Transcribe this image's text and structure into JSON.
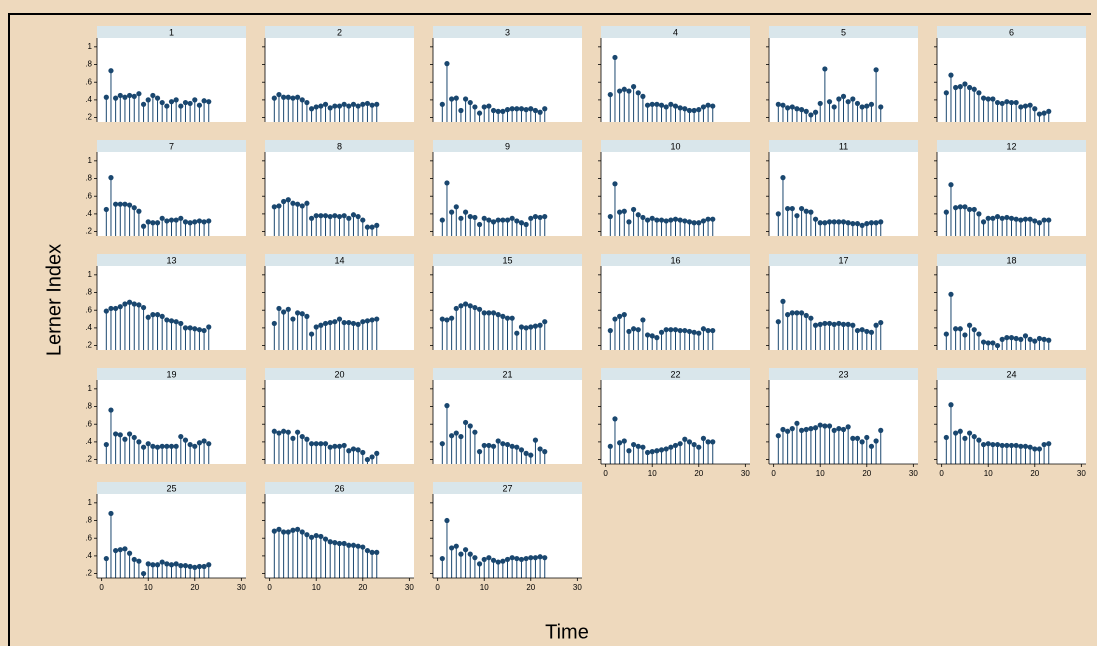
{
  "chart_data": {
    "type": "stem",
    "x_title": "Time",
    "y_title": "Lerner Index",
    "color": "#1a476f",
    "x": [
      1,
      2,
      3,
      4,
      5,
      6,
      7,
      8,
      9,
      10,
      11,
      12,
      13,
      14,
      15,
      16,
      17,
      18,
      19,
      20,
      21,
      22,
      23
    ],
    "xlim": [
      -1,
      31
    ],
    "xticks": [
      0,
      10,
      20,
      30
    ],
    "ylim": [
      0.15,
      1.1
    ],
    "yticks": [
      {
        "value": 0.2,
        "label": ".2"
      },
      {
        "value": 0.4,
        "label": ".4"
      },
      {
        "value": 0.6,
        "label": ".6"
      },
      {
        "value": 0.8,
        "label": ".8"
      },
      1
    ],
    "panels": [
      {
        "title": "1",
        "values": [
          0.43,
          0.73,
          0.42,
          0.45,
          0.43,
          0.45,
          0.44,
          0.47,
          0.35,
          0.4,
          0.45,
          0.42,
          0.37,
          0.33,
          0.38,
          0.4,
          0.33,
          0.37,
          0.36,
          0.4,
          0.34,
          0.39,
          0.38
        ]
      },
      {
        "title": "2",
        "values": [
          0.42,
          0.46,
          0.43,
          0.43,
          0.42,
          0.43,
          0.4,
          0.37,
          0.3,
          0.32,
          0.33,
          0.35,
          0.31,
          0.33,
          0.33,
          0.35,
          0.33,
          0.35,
          0.33,
          0.35,
          0.36,
          0.34,
          0.35
        ]
      },
      {
        "title": "3",
        "values": [
          0.35,
          0.81,
          0.41,
          0.42,
          0.28,
          0.41,
          0.37,
          0.32,
          0.25,
          0.32,
          0.33,
          0.28,
          0.27,
          0.27,
          0.29,
          0.3,
          0.3,
          0.3,
          0.29,
          0.3,
          0.28,
          0.26,
          0.3
        ]
      },
      {
        "title": "4",
        "values": [
          0.46,
          0.88,
          0.5,
          0.52,
          0.5,
          0.55,
          0.48,
          0.44,
          0.34,
          0.35,
          0.35,
          0.34,
          0.32,
          0.35,
          0.33,
          0.31,
          0.3,
          0.28,
          0.28,
          0.29,
          0.32,
          0.34,
          0.33
        ]
      },
      {
        "title": "5",
        "values": [
          0.35,
          0.34,
          0.31,
          0.32,
          0.3,
          0.29,
          0.27,
          0.23,
          0.26,
          0.36,
          0.75,
          0.38,
          0.32,
          0.41,
          0.44,
          0.38,
          0.41,
          0.36,
          0.32,
          0.33,
          0.35,
          0.74,
          0.32
        ]
      },
      {
        "title": "6",
        "values": [
          0.48,
          0.68,
          0.54,
          0.55,
          0.58,
          0.54,
          0.52,
          0.48,
          0.42,
          0.41,
          0.41,
          0.37,
          0.36,
          0.38,
          0.37,
          0.37,
          0.32,
          0.33,
          0.34,
          0.3,
          0.24,
          0.25,
          0.27
        ]
      },
      {
        "title": "7",
        "values": [
          0.45,
          0.81,
          0.51,
          0.51,
          0.51,
          0.5,
          0.47,
          0.43,
          0.26,
          0.31,
          0.3,
          0.3,
          0.35,
          0.32,
          0.33,
          0.33,
          0.35,
          0.31,
          0.3,
          0.31,
          0.32,
          0.31,
          0.32
        ]
      },
      {
        "title": "8",
        "values": [
          0.48,
          0.49,
          0.54,
          0.56,
          0.52,
          0.51,
          0.49,
          0.52,
          0.35,
          0.38,
          0.38,
          0.38,
          0.37,
          0.38,
          0.37,
          0.38,
          0.35,
          0.39,
          0.37,
          0.33,
          0.25,
          0.25,
          0.27
        ]
      },
      {
        "title": "9",
        "values": [
          0.33,
          0.75,
          0.42,
          0.48,
          0.35,
          0.42,
          0.37,
          0.36,
          0.28,
          0.35,
          0.33,
          0.31,
          0.33,
          0.33,
          0.33,
          0.35,
          0.32,
          0.3,
          0.28,
          0.35,
          0.37,
          0.36,
          0.37
        ]
      },
      {
        "title": "10",
        "values": [
          0.37,
          0.74,
          0.42,
          0.43,
          0.31,
          0.45,
          0.39,
          0.36,
          0.33,
          0.35,
          0.33,
          0.33,
          0.32,
          0.33,
          0.34,
          0.33,
          0.32,
          0.31,
          0.3,
          0.3,
          0.32,
          0.34,
          0.34
        ]
      },
      {
        "title": "11",
        "values": [
          0.4,
          0.81,
          0.46,
          0.46,
          0.38,
          0.46,
          0.43,
          0.42,
          0.34,
          0.3,
          0.3,
          0.31,
          0.31,
          0.31,
          0.31,
          0.3,
          0.29,
          0.29,
          0.27,
          0.29,
          0.3,
          0.3,
          0.31
        ]
      },
      {
        "title": "12",
        "values": [
          0.42,
          0.73,
          0.47,
          0.48,
          0.48,
          0.45,
          0.45,
          0.4,
          0.31,
          0.35,
          0.35,
          0.37,
          0.35,
          0.36,
          0.35,
          0.34,
          0.33,
          0.34,
          0.34,
          0.32,
          0.3,
          0.33,
          0.33
        ]
      },
      {
        "title": "13",
        "values": [
          0.59,
          0.62,
          0.62,
          0.64,
          0.67,
          0.69,
          0.67,
          0.66,
          0.63,
          0.52,
          0.55,
          0.55,
          0.53,
          0.49,
          0.48,
          0.47,
          0.45,
          0.4,
          0.4,
          0.39,
          0.38,
          0.37,
          0.41
        ]
      },
      {
        "title": "14",
        "values": [
          0.45,
          0.62,
          0.58,
          0.61,
          0.5,
          0.57,
          0.56,
          0.53,
          0.33,
          0.41,
          0.43,
          0.45,
          0.46,
          0.47,
          0.5,
          0.46,
          0.46,
          0.45,
          0.44,
          0.47,
          0.48,
          0.49,
          0.5
        ]
      },
      {
        "title": "15",
        "values": [
          0.5,
          0.49,
          0.51,
          0.62,
          0.65,
          0.67,
          0.65,
          0.63,
          0.61,
          0.57,
          0.57,
          0.57,
          0.55,
          0.53,
          0.51,
          0.51,
          0.34,
          0.41,
          0.4,
          0.41,
          0.42,
          0.43,
          0.47
        ]
      },
      {
        "title": "16",
        "values": [
          0.37,
          0.5,
          0.53,
          0.55,
          0.36,
          0.39,
          0.38,
          0.49,
          0.32,
          0.31,
          0.29,
          0.35,
          0.38,
          0.38,
          0.38,
          0.37,
          0.37,
          0.36,
          0.35,
          0.34,
          0.39,
          0.37,
          0.37
        ]
      },
      {
        "title": "17",
        "values": [
          0.47,
          0.7,
          0.55,
          0.57,
          0.57,
          0.57,
          0.54,
          0.51,
          0.43,
          0.44,
          0.45,
          0.45,
          0.44,
          0.45,
          0.44,
          0.44,
          0.43,
          0.37,
          0.38,
          0.36,
          0.35,
          0.43,
          0.46
        ]
      },
      {
        "title": "18",
        "values": [
          0.33,
          0.78,
          0.39,
          0.39,
          0.32,
          0.43,
          0.38,
          0.33,
          0.24,
          0.23,
          0.23,
          0.2,
          0.27,
          0.29,
          0.29,
          0.28,
          0.27,
          0.31,
          0.27,
          0.25,
          0.28,
          0.27,
          0.26
        ]
      },
      {
        "title": "19",
        "values": [
          0.37,
          0.76,
          0.49,
          0.48,
          0.43,
          0.49,
          0.45,
          0.4,
          0.34,
          0.38,
          0.35,
          0.34,
          0.35,
          0.35,
          0.35,
          0.35,
          0.46,
          0.42,
          0.37,
          0.35,
          0.39,
          0.41,
          0.38
        ]
      },
      {
        "title": "20",
        "values": [
          0.52,
          0.5,
          0.52,
          0.51,
          0.44,
          0.51,
          0.46,
          0.43,
          0.38,
          0.38,
          0.38,
          0.38,
          0.34,
          0.35,
          0.35,
          0.36,
          0.3,
          0.32,
          0.31,
          0.28,
          0.2,
          0.23,
          0.27
        ]
      },
      {
        "title": "21",
        "values": [
          0.38,
          0.81,
          0.47,
          0.5,
          0.46,
          0.62,
          0.58,
          0.51,
          0.29,
          0.36,
          0.36,
          0.35,
          0.41,
          0.38,
          0.37,
          0.35,
          0.34,
          0.31,
          0.27,
          0.25,
          0.42,
          0.32,
          0.29
        ]
      },
      {
        "title": "22",
        "values": [
          0.35,
          0.66,
          0.39,
          0.41,
          0.3,
          0.37,
          0.35,
          0.34,
          0.28,
          0.29,
          0.3,
          0.31,
          0.32,
          0.34,
          0.36,
          0.38,
          0.43,
          0.4,
          0.37,
          0.34,
          0.44,
          0.4,
          0.4
        ]
      },
      {
        "title": "23",
        "values": [
          0.47,
          0.54,
          0.52,
          0.55,
          0.61,
          0.53,
          0.54,
          0.55,
          0.56,
          0.59,
          0.58,
          0.58,
          0.53,
          0.55,
          0.54,
          0.57,
          0.44,
          0.44,
          0.4,
          0.45,
          0.35,
          0.41,
          0.53
        ]
      },
      {
        "title": "24",
        "values": [
          0.45,
          0.82,
          0.5,
          0.52,
          0.44,
          0.5,
          0.46,
          0.42,
          0.37,
          0.38,
          0.37,
          0.37,
          0.36,
          0.36,
          0.36,
          0.36,
          0.35,
          0.35,
          0.34,
          0.32,
          0.32,
          0.37,
          0.38
        ]
      },
      {
        "title": "25",
        "values": [
          0.37,
          0.88,
          0.46,
          0.47,
          0.48,
          0.43,
          0.36,
          0.34,
          0.2,
          0.31,
          0.3,
          0.3,
          0.33,
          0.31,
          0.3,
          0.31,
          0.29,
          0.29,
          0.28,
          0.27,
          0.28,
          0.28,
          0.3
        ]
      },
      {
        "title": "26",
        "values": [
          0.68,
          0.7,
          0.67,
          0.67,
          0.69,
          0.7,
          0.67,
          0.64,
          0.61,
          0.63,
          0.62,
          0.59,
          0.56,
          0.55,
          0.54,
          0.54,
          0.52,
          0.52,
          0.51,
          0.5,
          0.46,
          0.44,
          0.44
        ]
      },
      {
        "title": "27",
        "values": [
          0.37,
          0.8,
          0.49,
          0.51,
          0.42,
          0.47,
          0.42,
          0.38,
          0.31,
          0.36,
          0.38,
          0.35,
          0.33,
          0.34,
          0.36,
          0.38,
          0.37,
          0.36,
          0.37,
          0.38,
          0.38,
          0.39,
          0.38
        ]
      }
    ]
  }
}
